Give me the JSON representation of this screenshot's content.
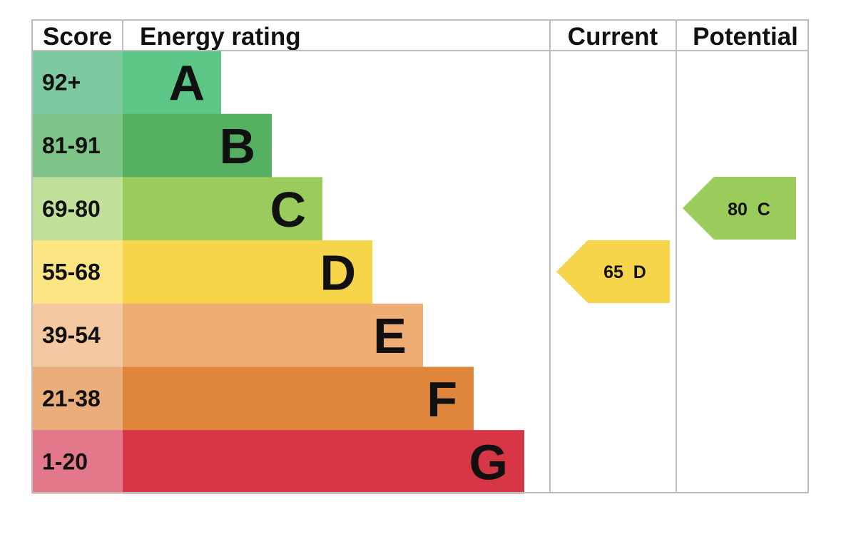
{
  "headers": {
    "score": "Score",
    "energy_rating": "Energy rating",
    "current": "Current",
    "potential": "Potential"
  },
  "bands": [
    {
      "score": "92+",
      "letter": "A",
      "color": "#5bc685",
      "score_color": "#7dcaa0"
    },
    {
      "score": "81-91",
      "letter": "B",
      "color": "#55b062",
      "score_color": "#7fc488"
    },
    {
      "score": "69-80",
      "letter": "C",
      "color": "#9bcb5a",
      "score_color": "#c1e09a"
    },
    {
      "score": "55-68",
      "letter": "D",
      "color": "#f7d54a",
      "score_color": "#fae582"
    },
    {
      "score": "39-54",
      "letter": "E",
      "color": "#eead73",
      "score_color": "#f4c9a1"
    },
    {
      "score": "21-38",
      "letter": "F",
      "color": "#e0853c",
      "score_color": "#eaae7a"
    },
    {
      "score": "1-20",
      "letter": "G",
      "color": "#d73646",
      "score_color": "#e3788b"
    }
  ],
  "current": {
    "label": "65  D",
    "value": 65,
    "band": "D",
    "color": "#f7d54a"
  },
  "potential": {
    "label": "80  C",
    "value": 80,
    "band": "C",
    "color": "#9bcb5a"
  }
}
